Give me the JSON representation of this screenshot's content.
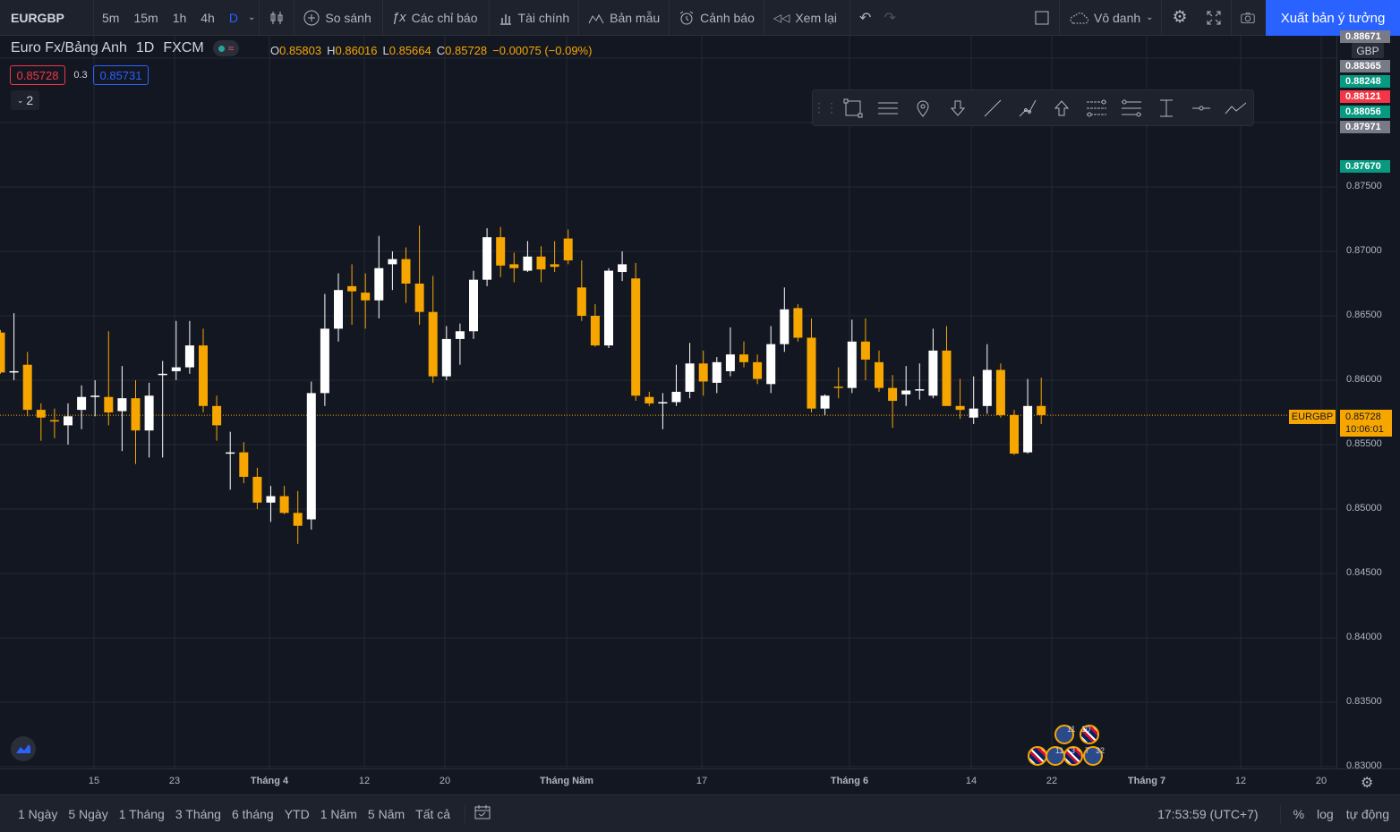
{
  "toolbar": {
    "symbol": "EURGBP",
    "intervals": [
      "5m",
      "15m",
      "1h",
      "4h",
      "D"
    ],
    "active_interval": "D",
    "compare": "So sánh",
    "indicators": "Các chỉ báo",
    "financials": "Tài chính",
    "templates": "Bản mẫu",
    "alerts": "Cảnh báo",
    "replay": "Xem lại",
    "layout_name": "Vô danh",
    "publish": "Xuất bản ý tưởng"
  },
  "legend": {
    "name": "Euro Fx/Bảng Anh",
    "interval": "1D",
    "exchange": "FXCM",
    "o_label": "O",
    "o": "0.85803",
    "h_label": "H",
    "h": "0.86016",
    "l_label": "L",
    "l": "0.85664",
    "c_label": "C",
    "c": "0.85728",
    "change": "−0.00075 (−0.09%)",
    "sell": "0.85728",
    "spread": "0.3",
    "buy": "0.85731",
    "collapsed_count": "2"
  },
  "price_axis": {
    "currency": "GBP",
    "ticks": [
      "0.87500",
      "0.87000",
      "0.86500",
      "0.86000",
      "0.85500",
      "0.85000",
      "0.84500",
      "0.84000",
      "0.83500",
      "0.83000"
    ],
    "labels": [
      {
        "text": "0.88671",
        "color": "#787b86"
      },
      {
        "text": "0.88365",
        "color": "#787b86"
      },
      {
        "text": "0.88248",
        "color": "#089981"
      },
      {
        "text": "0.88121",
        "color": "#f23645"
      },
      {
        "text": "0.88056",
        "color": "#089981"
      },
      {
        "text": "0.87971",
        "color": "#787b86"
      },
      {
        "text": "0.87670",
        "color": "#089981"
      }
    ],
    "current_symbol": "EURGBP",
    "current_price": "0.85728",
    "countdown": "10:06:01"
  },
  "time_axis": {
    "labels": [
      {
        "text": "15",
        "bold": false
      },
      {
        "text": "23",
        "bold": false
      },
      {
        "text": "Tháng 4",
        "bold": true
      },
      {
        "text": "12",
        "bold": false
      },
      {
        "text": "20",
        "bold": false
      },
      {
        "text": "Tháng Năm",
        "bold": true
      },
      {
        "text": "17",
        "bold": false
      },
      {
        "text": "Tháng 6",
        "bold": true
      },
      {
        "text": "14",
        "bold": false
      },
      {
        "text": "22",
        "bold": false
      },
      {
        "text": "Tháng 7",
        "bold": true
      },
      {
        "text": "12",
        "bold": false
      },
      {
        "text": "20",
        "bold": false
      }
    ]
  },
  "events": [
    "11",
    "10",
    "11",
    "3",
    "7",
    "32"
  ],
  "bottom": {
    "ranges": [
      "1 Ngày",
      "5 Ngày",
      "1 Tháng",
      "3 Tháng",
      "6 tháng",
      "YTD",
      "1 Năm",
      "5 Năm",
      "Tất cả"
    ],
    "clock": "17:53:59 (UTC+7)",
    "percent": "%",
    "log": "log",
    "auto": "tự động"
  },
  "colors": {
    "bg": "#131722",
    "up": "#ffffff",
    "down": "#f7a600",
    "accent": "#2962ff"
  },
  "chart_data": {
    "type": "candlestick",
    "candles": [
      {
        "o": 0.8637,
        "h": 0.8639,
        "l": 0.8605,
        "c": 0.8606
      },
      {
        "o": 0.8606,
        "h": 0.8652,
        "l": 0.86,
        "c": 0.8607
      },
      {
        "o": 0.8612,
        "h": 0.8622,
        "l": 0.8572,
        "c": 0.8577
      },
      {
        "o": 0.8577,
        "h": 0.8582,
        "l": 0.8553,
        "c": 0.8571
      },
      {
        "o": 0.8569,
        "h": 0.8578,
        "l": 0.8555,
        "c": 0.8568
      },
      {
        "o": 0.8565,
        "h": 0.8582,
        "l": 0.855,
        "c": 0.8572
      },
      {
        "o": 0.8577,
        "h": 0.8596,
        "l": 0.8562,
        "c": 0.8587
      },
      {
        "o": 0.8587,
        "h": 0.86,
        "l": 0.8572,
        "c": 0.8588
      },
      {
        "o": 0.8587,
        "h": 0.8638,
        "l": 0.8565,
        "c": 0.8575
      },
      {
        "o": 0.8576,
        "h": 0.8611,
        "l": 0.8545,
        "c": 0.8586
      },
      {
        "o": 0.8586,
        "h": 0.86,
        "l": 0.8535,
        "c": 0.8561
      },
      {
        "o": 0.8561,
        "h": 0.8598,
        "l": 0.854,
        "c": 0.8588
      },
      {
        "o": 0.8605,
        "h": 0.8615,
        "l": 0.854,
        "c": 0.8605
      },
      {
        "o": 0.8607,
        "h": 0.8646,
        "l": 0.86,
        "c": 0.861
      },
      {
        "o": 0.861,
        "h": 0.8646,
        "l": 0.8605,
        "c": 0.8627
      },
      {
        "o": 0.8627,
        "h": 0.864,
        "l": 0.8575,
        "c": 0.858
      },
      {
        "o": 0.858,
        "h": 0.8588,
        "l": 0.8553,
        "c": 0.8565
      },
      {
        "o": 0.8544,
        "h": 0.856,
        "l": 0.8515,
        "c": 0.8544
      },
      {
        "o": 0.8544,
        "h": 0.8552,
        "l": 0.852,
        "c": 0.8525
      },
      {
        "o": 0.8525,
        "h": 0.8532,
        "l": 0.85,
        "c": 0.8505
      },
      {
        "o": 0.8505,
        "h": 0.8518,
        "l": 0.849,
        "c": 0.851
      },
      {
        "o": 0.851,
        "h": 0.8518,
        "l": 0.8496,
        "c": 0.8497
      },
      {
        "o": 0.8497,
        "h": 0.8514,
        "l": 0.8473,
        "c": 0.8487
      },
      {
        "o": 0.8492,
        "h": 0.8599,
        "l": 0.8484,
        "c": 0.859
      },
      {
        "o": 0.859,
        "h": 0.8667,
        "l": 0.858,
        "c": 0.864
      },
      {
        "o": 0.864,
        "h": 0.8683,
        "l": 0.863,
        "c": 0.867
      },
      {
        "o": 0.8673,
        "h": 0.869,
        "l": 0.8643,
        "c": 0.8669
      },
      {
        "o": 0.8668,
        "h": 0.8683,
        "l": 0.864,
        "c": 0.8662
      },
      {
        "o": 0.8662,
        "h": 0.8712,
        "l": 0.8648,
        "c": 0.8687
      },
      {
        "o": 0.869,
        "h": 0.87,
        "l": 0.867,
        "c": 0.8694
      },
      {
        "o": 0.8694,
        "h": 0.8703,
        "l": 0.866,
        "c": 0.8675
      },
      {
        "o": 0.8675,
        "h": 0.872,
        "l": 0.8643,
        "c": 0.8653
      },
      {
        "o": 0.8653,
        "h": 0.8681,
        "l": 0.8598,
        "c": 0.8603
      },
      {
        "o": 0.8603,
        "h": 0.8642,
        "l": 0.86,
        "c": 0.8632
      },
      {
        "o": 0.8632,
        "h": 0.8644,
        "l": 0.8612,
        "c": 0.8638
      },
      {
        "o": 0.8638,
        "h": 0.8685,
        "l": 0.8632,
        "c": 0.8678
      },
      {
        "o": 0.8678,
        "h": 0.8718,
        "l": 0.8673,
        "c": 0.8711
      },
      {
        "o": 0.8711,
        "h": 0.8719,
        "l": 0.868,
        "c": 0.8689
      },
      {
        "o": 0.869,
        "h": 0.8699,
        "l": 0.8676,
        "c": 0.8687
      },
      {
        "o": 0.8685,
        "h": 0.8708,
        "l": 0.8684,
        "c": 0.8696
      },
      {
        "o": 0.8696,
        "h": 0.8704,
        "l": 0.8676,
        "c": 0.8686
      },
      {
        "o": 0.869,
        "h": 0.8708,
        "l": 0.8684,
        "c": 0.8688
      },
      {
        "o": 0.871,
        "h": 0.8717,
        "l": 0.869,
        "c": 0.8693
      },
      {
        "o": 0.8672,
        "h": 0.8693,
        "l": 0.8646,
        "c": 0.865
      },
      {
        "o": 0.865,
        "h": 0.8659,
        "l": 0.8626,
        "c": 0.8627
      },
      {
        "o": 0.8627,
        "h": 0.8687,
        "l": 0.8625,
        "c": 0.8685
      },
      {
        "o": 0.8684,
        "h": 0.87,
        "l": 0.8677,
        "c": 0.869
      },
      {
        "o": 0.8679,
        "h": 0.8691,
        "l": 0.8584,
        "c": 0.8588
      },
      {
        "o": 0.8587,
        "h": 0.8591,
        "l": 0.858,
        "c": 0.8582
      },
      {
        "o": 0.8583,
        "h": 0.859,
        "l": 0.8562,
        "c": 0.8583
      },
      {
        "o": 0.8583,
        "h": 0.8612,
        "l": 0.858,
        "c": 0.8591
      },
      {
        "o": 0.8591,
        "h": 0.8629,
        "l": 0.8586,
        "c": 0.8613
      },
      {
        "o": 0.8613,
        "h": 0.8623,
        "l": 0.8588,
        "c": 0.8599
      },
      {
        "o": 0.8598,
        "h": 0.8618,
        "l": 0.859,
        "c": 0.8614
      },
      {
        "o": 0.8607,
        "h": 0.8641,
        "l": 0.8603,
        "c": 0.862
      },
      {
        "o": 0.862,
        "h": 0.863,
        "l": 0.861,
        "c": 0.8614
      },
      {
        "o": 0.8614,
        "h": 0.862,
        "l": 0.8597,
        "c": 0.8601
      },
      {
        "o": 0.8597,
        "h": 0.8642,
        "l": 0.859,
        "c": 0.8628
      },
      {
        "o": 0.8628,
        "h": 0.8672,
        "l": 0.8622,
        "c": 0.8655
      },
      {
        "o": 0.8656,
        "h": 0.8659,
        "l": 0.863,
        "c": 0.8633
      },
      {
        "o": 0.8633,
        "h": 0.8648,
        "l": 0.8575,
        "c": 0.8578
      },
      {
        "o": 0.8578,
        "h": 0.8589,
        "l": 0.8573,
        "c": 0.8588
      },
      {
        "o": 0.8595,
        "h": 0.861,
        "l": 0.8586,
        "c": 0.8594
      },
      {
        "o": 0.8594,
        "h": 0.8647,
        "l": 0.859,
        "c": 0.863
      },
      {
        "o": 0.863,
        "h": 0.8648,
        "l": 0.86,
        "c": 0.8616
      },
      {
        "o": 0.8614,
        "h": 0.8623,
        "l": 0.8591,
        "c": 0.8594
      },
      {
        "o": 0.8594,
        "h": 0.8604,
        "l": 0.8563,
        "c": 0.8584
      },
      {
        "o": 0.8589,
        "h": 0.8611,
        "l": 0.858,
        "c": 0.8592
      },
      {
        "o": 0.8592,
        "h": 0.8613,
        "l": 0.8585,
        "c": 0.8593
      },
      {
        "o": 0.8588,
        "h": 0.864,
        "l": 0.8586,
        "c": 0.8623
      },
      {
        "o": 0.8623,
        "h": 0.8642,
        "l": 0.858,
        "c": 0.858
      },
      {
        "o": 0.858,
        "h": 0.8601,
        "l": 0.857,
        "c": 0.8577
      },
      {
        "o": 0.8571,
        "h": 0.8603,
        "l": 0.8566,
        "c": 0.8578
      },
      {
        "o": 0.858,
        "h": 0.8628,
        "l": 0.8574,
        "c": 0.8608
      },
      {
        "o": 0.8608,
        "h": 0.8613,
        "l": 0.8571,
        "c": 0.8573
      },
      {
        "o": 0.8573,
        "h": 0.8577,
        "l": 0.8542,
        "c": 0.8543
      },
      {
        "o": 0.8544,
        "h": 0.8601,
        "l": 0.8543,
        "c": 0.858
      },
      {
        "o": 0.858,
        "h": 0.8602,
        "l": 0.8566,
        "c": 0.8573
      }
    ],
    "ylim": [
      0.83,
      0.889
    ]
  }
}
